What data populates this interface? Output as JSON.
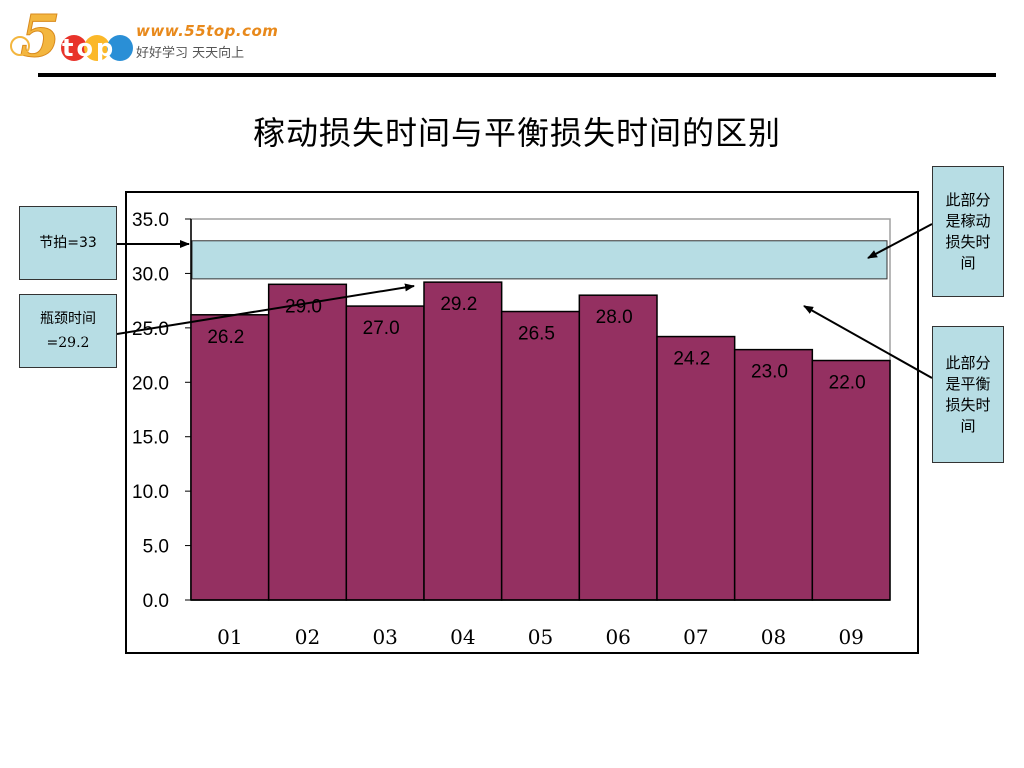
{
  "header": {
    "logo_digit": "5",
    "logo_word": "top",
    "site_url": "www.55top.com",
    "slogan": "好好学习  天天向上"
  },
  "title": "稼动损失时间与平衡损失时间的区别",
  "callouts": {
    "takt": "节拍=33",
    "bottleneck_line1": "瓶颈时间",
    "bottleneck_line2": "=29.2",
    "operational_loss": "此部分是稼动损失时间",
    "balance_loss": "此部分是平衡损失时间"
  },
  "chart_data": {
    "type": "bar",
    "title": "稼动损失时间与平衡损失时间的区别",
    "categories": [
      "01",
      "02",
      "03",
      "04",
      "05",
      "06",
      "07",
      "08",
      "09"
    ],
    "values": [
      26.2,
      29.0,
      27.0,
      29.2,
      26.5,
      28.0,
      24.2,
      23.0,
      22.0
    ],
    "value_labels": [
      "26.2",
      "29.0",
      "27.0",
      "29.2",
      "26.5",
      "28.0",
      "24.2",
      "23.0",
      "22.0"
    ],
    "ylim": [
      0,
      35
    ],
    "yticks": [
      "0.0",
      "5.0",
      "10.0",
      "15.0",
      "20.0",
      "25.0",
      "30.0",
      "35.0"
    ],
    "takt_band": [
      29.5,
      33.0
    ],
    "bottleneck": 29.2,
    "takt": 33,
    "grid": false,
    "colors": {
      "bar": "#943061",
      "band": "#b7dde4",
      "plot_border": "#a0a0a0"
    }
  }
}
